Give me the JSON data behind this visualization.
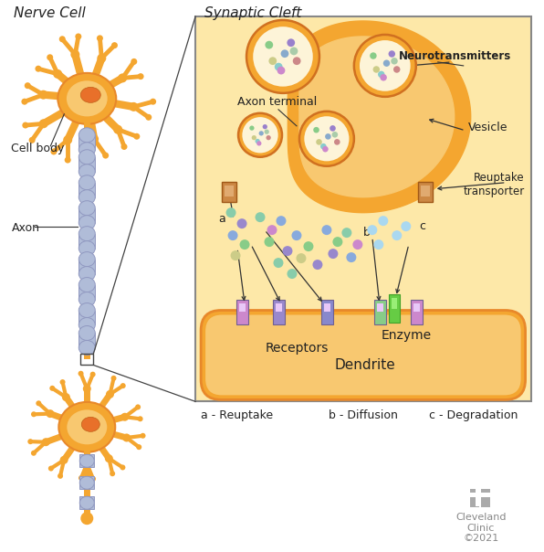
{
  "bg_color": "#ffffff",
  "neuron_orange": "#F4A630",
  "neuron_light": "#F8C870",
  "neuron_dark": "#E8882A",
  "nucleus_color": "#E8702A",
  "myelin_color": "#B0BCD8",
  "myelin_border": "#9098C0",
  "synaptic_bg": "#FDE8A8",
  "synaptic_border": "#888888",
  "vesicle_border": "#D07020",
  "vesicle_inner": "#FDF4D8",
  "dot_colors_vesicle": [
    "#88CC88",
    "#9980CC",
    "#88CCCC",
    "#CC8888",
    "#CCCC88",
    "#88AACC"
  ],
  "dot_colors_cleft_green": "#66CC88",
  "dot_colors_cleft_blue": "#88AADD",
  "dot_colors_cleft_purple": "#9988CC",
  "dot_colors_cleft_lt": "#AAD8F0",
  "reuptake_color": "#CC8844",
  "reuptake_light": "#E0AA70",
  "receptor_colors": [
    "#CC88CC",
    "#9988CC",
    "#8888CC",
    "#88CC88",
    "#CC88CC"
  ],
  "enzyme_color": "#66CC44",
  "enzyme_light": "#99EE77",
  "arrow_color": "#333333",
  "label_color": "#222222",
  "bold_label_color": "#111111",
  "title_nerve": "Nerve Cell",
  "title_synaptic": "Synaptic Cleft",
  "label_axon_terminal": "Axon terminal",
  "label_neurotransmitters": "Neurotransmitters",
  "label_vesicle": "Vesicle",
  "label_reuptake_transporter": "Reuptake\ntransporter",
  "label_receptors": "Receptors",
  "label_enzyme": "Enzyme",
  "label_dendrite": "Dendrite",
  "label_cell_body": "Cell body",
  "label_axon": "Axon",
  "label_a": "a",
  "label_b": "b",
  "label_c": "c",
  "legend_a": "a - Reuptake",
  "legend_b": "b - Diffusion",
  "legend_c": "c - Degradation",
  "cleveland_text": "Cleveland\nClinic\n©2021"
}
